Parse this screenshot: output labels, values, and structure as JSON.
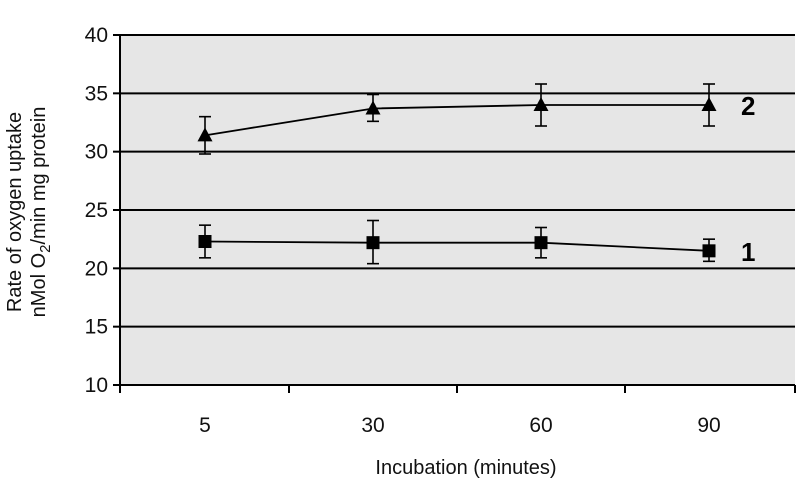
{
  "chart_data": {
    "type": "line",
    "categories": [
      "5",
      "30",
      "60",
      "90"
    ],
    "xlabel": "Incubation (minutes)",
    "ylabel_line1": "Rate of oxygen uptake",
    "ylabel_line2_pre": "nMol O",
    "ylabel_line2_sub": "2",
    "ylabel_line2_post": "/min mg protein",
    "ylim": [
      10,
      40
    ],
    "yticks": [
      "10",
      "15",
      "20",
      "25",
      "30",
      "35",
      "40"
    ],
    "grid": true,
    "series": [
      {
        "name": "1",
        "marker": "square",
        "values": [
          22.3,
          22.2,
          22.2,
          21.5
        ],
        "error_low": [
          20.9,
          20.4,
          20.9,
          20.6
        ],
        "error_high": [
          23.7,
          24.1,
          23.5,
          22.5
        ]
      },
      {
        "name": "2",
        "marker": "triangle",
        "values": [
          31.4,
          33.7,
          34.0,
          34.0
        ],
        "error_low": [
          29.8,
          32.6,
          32.2,
          32.2
        ],
        "error_high": [
          33.0,
          34.9,
          35.8,
          35.8
        ]
      }
    ],
    "colors": {
      "background": "#e6e6e6",
      "lines": "#000000"
    }
  }
}
